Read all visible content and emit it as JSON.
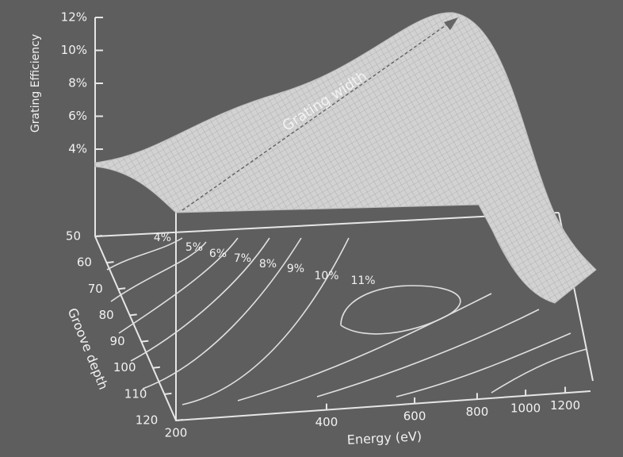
{
  "chart_data": {
    "type": "surface3d",
    "z_label": "Grating Efficiency",
    "x_label": "Energy (eV)",
    "y_label": "Groove depth",
    "annotation": "Grating width",
    "xlog": true,
    "xlim": [
      200,
      1300
    ],
    "xticks": [
      200,
      400,
      600,
      800,
      1000,
      1200
    ],
    "ylim": [
      50,
      120
    ],
    "yticks": [
      50,
      60,
      70,
      80,
      90,
      100,
      110,
      120
    ],
    "zlim": [
      0,
      12
    ],
    "zticks": [
      {
        "value": 4,
        "label": "4%"
      },
      {
        "value": 6,
        "label": "6%"
      },
      {
        "value": 8,
        "label": "8%"
      },
      {
        "value": 10,
        "label": "10%"
      },
      {
        "value": 12,
        "label": "12%"
      }
    ],
    "contour_labels": [
      {
        "value": 4,
        "label": "4%"
      },
      {
        "value": 5,
        "label": "5%"
      },
      {
        "value": 6,
        "label": "6%"
      },
      {
        "value": 7,
        "label": "7%"
      },
      {
        "value": 8,
        "label": "8%"
      },
      {
        "value": 9,
        "label": "9%"
      },
      {
        "value": 10,
        "label": "10%"
      },
      {
        "value": 11,
        "label": "11%"
      }
    ]
  }
}
